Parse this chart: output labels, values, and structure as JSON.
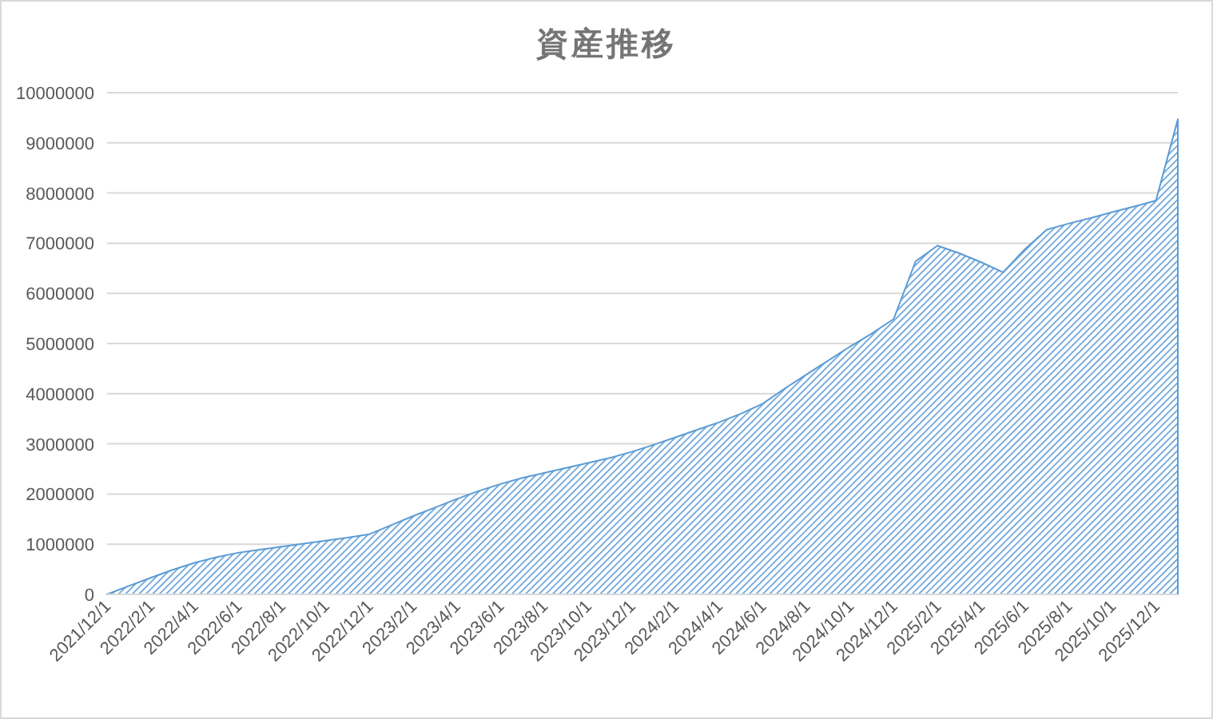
{
  "chart_data": {
    "type": "area",
    "title": "資産推移",
    "categories": [
      "2021/12/1",
      null,
      "2022/2/1",
      null,
      "2022/4/1",
      null,
      "2022/6/1",
      null,
      "2022/8/1",
      null,
      "2022/10/1",
      null,
      "2022/12/1",
      null,
      "2023/2/1",
      null,
      "2023/4/1",
      null,
      "2023/6/1",
      null,
      "2023/8/1",
      null,
      "2023/10/1",
      null,
      "2023/12/1",
      null,
      "2024/2/1",
      null,
      "2024/4/1",
      null,
      "2024/6/1",
      null,
      "2024/8/1",
      null,
      "2024/10/1",
      null,
      "2024/12/1",
      null,
      "2025/2/1",
      null,
      "2025/4/1",
      null,
      "2025/6/1",
      null,
      "2025/8/1",
      null,
      "2025/10/1",
      null,
      "2025/12/1",
      null
    ],
    "values": [
      0,
      170000,
      330000,
      490000,
      630000,
      740000,
      830000,
      890000,
      950000,
      1010000,
      1070000,
      1130000,
      1200000,
      1380000,
      1560000,
      1730000,
      1900000,
      2060000,
      2200000,
      2320000,
      2420000,
      2520000,
      2620000,
      2720000,
      2840000,
      2980000,
      3130000,
      3280000,
      3430000,
      3600000,
      3800000,
      4100000,
      4380000,
      4660000,
      4940000,
      5200000,
      5490000,
      6640000,
      6950000,
      6800000,
      6620000,
      6420000,
      6880000,
      7270000,
      7390000,
      7500000,
      7620000,
      7730000,
      7850000,
      9470000
    ],
    "color": "#5b9bd5",
    "ylim": [
      0,
      10000000
    ],
    "yticks": [
      0,
      1000000,
      2000000,
      3000000,
      4000000,
      5000000,
      6000000,
      7000000,
      8000000,
      9000000,
      10000000
    ],
    "grid": "y"
  }
}
